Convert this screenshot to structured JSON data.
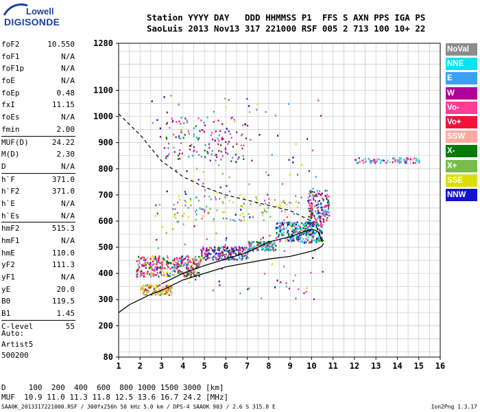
{
  "logo": {
    "top": "Lowell",
    "bottom": "DIGISONDE"
  },
  "header": {
    "line1": "Station YYYY DAY   DDD HHMMSS P1  FFS S AXN PPS IGA PS",
    "line2": "SaoLuis 2013 Nov13 317 221000 RSF 005 2 713 100 10+ 22"
  },
  "params": [
    {
      "label": "foF2",
      "value": "10.550"
    },
    {
      "label": "foF1",
      "value": "N/A"
    },
    {
      "label": "foF1p",
      "value": "N/A"
    },
    {
      "label": "foE",
      "value": "N/A"
    },
    {
      "label": "foEp",
      "value": "0.48"
    },
    {
      "label": "fxI",
      "value": "11.15"
    },
    {
      "label": "foEs",
      "value": "N/A"
    },
    {
      "label": "fmin",
      "value": "2.00"
    },
    {
      "label": "MUF(D)",
      "value": "24.22"
    },
    {
      "label": "M(D)",
      "value": "2.30"
    },
    {
      "label": "D",
      "value": "N/A"
    },
    {
      "label": "h`F",
      "value": "371.0"
    },
    {
      "label": "h`F2",
      "value": "371.0"
    },
    {
      "label": "h`E",
      "value": "N/A"
    },
    {
      "label": "h`Es",
      "value": "N/A"
    },
    {
      "label": "hmF2",
      "value": "515.3"
    },
    {
      "label": "hmF1",
      "value": "N/A"
    },
    {
      "label": "hmE",
      "value": "110.0"
    },
    {
      "label": "yF2",
      "value": "111.3"
    },
    {
      "label": "yF1",
      "value": "N/A"
    },
    {
      "label": "yE",
      "value": "20.0"
    },
    {
      "label": "B0",
      "value": "119.5"
    },
    {
      "label": "B1",
      "value": "1.45"
    },
    {
      "label": "C-level",
      "value": "55"
    }
  ],
  "auto": {
    "line1": "Auto:",
    "line2": "Artist5",
    "line3": "500200"
  },
  "legend": [
    {
      "label": "NoVal",
      "color": "#8c8c8c"
    },
    {
      "label": "NNE",
      "color": "#00e5ee"
    },
    {
      "label": "E",
      "color": "#3aa0f0"
    },
    {
      "label": "W",
      "color": "#b0009c"
    },
    {
      "label": "Vo-",
      "color": "#ff3c96"
    },
    {
      "label": "Vo+",
      "color": "#f0143c"
    },
    {
      "label": "SSW",
      "color": "#ffaaa0"
    },
    {
      "label": "X-",
      "color": "#0a7a0a"
    },
    {
      "label": "X+",
      "color": "#78bc4c"
    },
    {
      "label": "SSE",
      "color": "#dcdc00"
    },
    {
      "label": "NNW",
      "color": "#1414c8"
    }
  ],
  "bottom": {
    "d_line": "D     100  200  400  600  800 1000 1500 3000 [km]",
    "muf_line": "MUF  10.9 11.0 11.3 11.8 12.5 13.6 16.7 24.2 [MHz]",
    "footer": "SAA0K_2013317221000.RSF / 300fx256h 50 kHz 5.0 km / DPS-4 SAA0K 903 / 2.6 S 315.8 E",
    "version": "Ion2Png 1.3.17"
  },
  "chart_data": {
    "type": "scatter",
    "xlim": [
      1,
      16
    ],
    "ylim": [
      80,
      1280
    ],
    "x_ticks": [
      "1",
      "2",
      "3",
      "4",
      "5",
      "6",
      "7",
      "8",
      "9",
      "10",
      "11",
      "12",
      "13",
      "14",
      "15",
      "16"
    ],
    "y_ticks": [
      "80",
      "200",
      "300",
      "400",
      "500",
      "600",
      "700",
      "800",
      "900",
      "1000",
      "1100",
      "1280"
    ],
    "grid": true,
    "legend_placement": "right",
    "profile_curve": {
      "x": [
        1.0,
        1.5,
        2.0,
        2.5,
        3.0,
        3.5,
        4.0,
        5.0,
        6.0,
        7.0,
        8.0,
        9.0,
        9.5,
        10.0,
        10.3,
        10.5,
        10.55
      ],
      "y": [
        250,
        280,
        300,
        320,
        335,
        355,
        375,
        400,
        425,
        440,
        455,
        465,
        475,
        485,
        495,
        505,
        515
      ]
    },
    "virtual_curve": {
      "x": [
        3.0,
        4.0,
        5.0,
        6.0,
        7.0,
        7.5,
        8.0,
        8.5,
        9.0,
        9.5,
        10.0,
        10.3,
        10.5
      ],
      "y": [
        360,
        400,
        430,
        455,
        480,
        500,
        520,
        530,
        540,
        555,
        570,
        560,
        520
      ]
    },
    "mufd_curve": {
      "x": [
        1.0,
        2.0,
        3.0,
        4.0,
        5.0,
        6.0,
        7.0,
        8.0,
        9.0,
        9.5,
        10.0,
        10.3,
        10.5
      ],
      "y": [
        1010,
        930,
        830,
        770,
        730,
        700,
        680,
        660,
        640,
        620,
        600,
        570,
        520
      ]
    },
    "echo_clusters": [
      {
        "x": [
          1.8,
          4.8
        ],
        "y": [
          390,
          470
        ],
        "n": 320,
        "colors": [
          "Vo-",
          "Vo+",
          "W",
          "X-",
          "SSE",
          "E"
        ]
      },
      {
        "x": [
          2.0,
          3.5
        ],
        "y": [
          320,
          360
        ],
        "n": 120,
        "colors": [
          "SSE",
          "SSW",
          "Vo+",
          "X+"
        ]
      },
      {
        "x": [
          4.8,
          7.0
        ],
        "y": [
          455,
          505
        ],
        "n": 200,
        "colors": [
          "Vo-",
          "W",
          "X-",
          "E",
          "NNW"
        ]
      },
      {
        "x": [
          7.0,
          8.3
        ],
        "y": [
          490,
          525
        ],
        "n": 120,
        "colors": [
          "X-",
          "E",
          "NNE",
          "Vo-"
        ]
      },
      {
        "x": [
          8.3,
          10.5
        ],
        "y": [
          520,
          600
        ],
        "n": 260,
        "colors": [
          "E",
          "NNE",
          "X-",
          "Vo-",
          "NNW"
        ]
      },
      {
        "x": [
          9.8,
          10.8
        ],
        "y": [
          600,
          720
        ],
        "n": 140,
        "colors": [
          "E",
          "Vo+",
          "X-",
          "NNW",
          "Vo-"
        ]
      },
      {
        "x": [
          3.0,
          7.0
        ],
        "y": [
          830,
          1000
        ],
        "n": 130,
        "colors": [
          "Vo-",
          "W",
          "X-",
          "Vo+",
          "E"
        ]
      },
      {
        "x": [
          12.0,
          15.0
        ],
        "y": [
          825,
          845
        ],
        "n": 90,
        "colors": [
          "Vo-",
          "W",
          "E",
          "SSW",
          "NNE"
        ]
      },
      {
        "x": [
          3.5,
          9.5
        ],
        "y": [
          600,
          700
        ],
        "n": 110,
        "colors": [
          "SSE",
          "X+",
          "E",
          "Vo-"
        ]
      },
      {
        "x": [
          2.5,
          10.5
        ],
        "y": [
          300,
          1100
        ],
        "n": 160,
        "colors": [
          "SSE",
          "E",
          "X+",
          "NNW",
          "Vo-",
          "W"
        ]
      }
    ]
  }
}
